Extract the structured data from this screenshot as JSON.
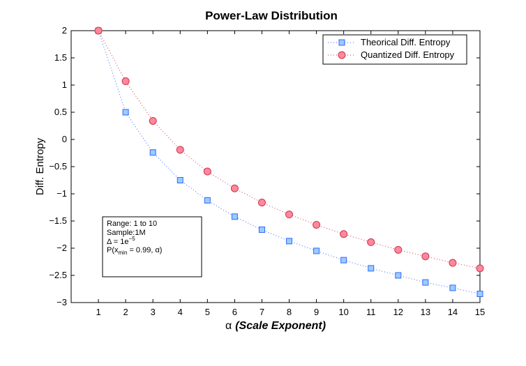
{
  "chart_data": {
    "type": "line",
    "title": "Power-Law Distribution",
    "xlabel_symbol": "α",
    "xlabel_text": "(Scale Exponent)",
    "ylabel": "Diff. Entropy",
    "xlim": [
      0,
      15
    ],
    "ylim": [
      -3,
      2
    ],
    "xticks": [
      1,
      2,
      3,
      4,
      5,
      6,
      7,
      8,
      9,
      10,
      11,
      12,
      13,
      14,
      15
    ],
    "yticks": [
      2,
      1.5,
      1,
      0.5,
      0,
      -0.5,
      -1,
      -1.5,
      -2,
      -2.5,
      -3
    ],
    "ytick_labels": [
      "2",
      "1.5",
      "1",
      "0.5",
      "0",
      "−0.5",
      "−1",
      "−1.5",
      "−2",
      "−2.5",
      "−3"
    ],
    "x": [
      1,
      2,
      3,
      4,
      5,
      6,
      7,
      8,
      9,
      10,
      11,
      12,
      13,
      14,
      15
    ],
    "series": [
      {
        "name": "Theorical Diff. Entropy",
        "marker": "square",
        "color": "#3366ff",
        "fill": "#99ccff",
        "values": [
          2.0,
          0.5,
          -0.24,
          -0.75,
          -1.12,
          -1.42,
          -1.66,
          -1.87,
          -2.05,
          -2.22,
          -2.37,
          -2.5,
          -2.63,
          -2.73,
          -2.84
        ]
      },
      {
        "name": "Quantized Diff. Entropy",
        "marker": "circle",
        "color": "#cc3355",
        "fill": "#ff8899",
        "values": [
          2.0,
          1.07,
          0.34,
          -0.19,
          -0.59,
          -0.9,
          -1.16,
          -1.38,
          -1.57,
          -1.74,
          -1.89,
          -2.03,
          -2.15,
          -2.27,
          -2.37
        ]
      }
    ],
    "legend_position": "top-right",
    "grid": false,
    "annotation": {
      "line1": "Range: 1 to 10",
      "line2": "Sample:1M",
      "line3_prefix": "Δ = 1e",
      "line3_sup": "−5",
      "line4_prefix": "P(x",
      "line4_sub": "min",
      "line4_suffix": " = 0.99, α)"
    }
  }
}
